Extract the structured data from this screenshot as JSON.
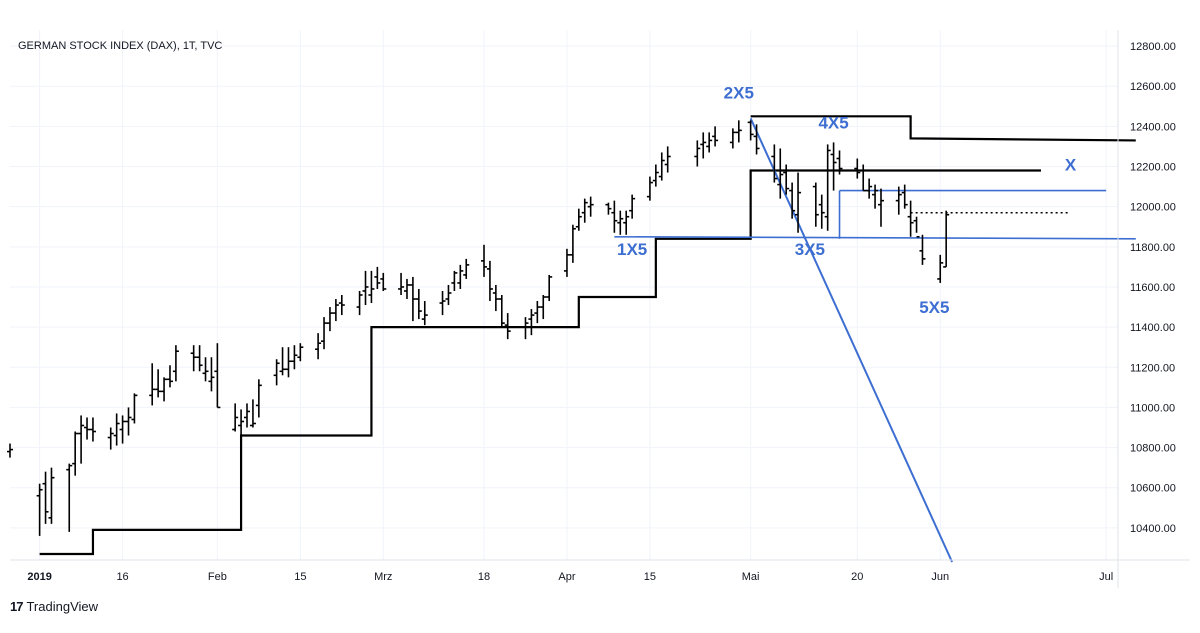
{
  "chart_data": {
    "type": "ohlc",
    "title": "GERMAN STOCK INDEX (DAX), 1T, TVC",
    "ylim": [
      10240,
      12880
    ],
    "y_ticks": [
      "12800.00",
      "12600.00",
      "12400.00",
      "12200.00",
      "12000.00",
      "11800.00",
      "11600.00",
      "11400.00",
      "11200.00",
      "11000.00",
      "10800.00",
      "10600.00",
      "10400.00"
    ],
    "y_tick_values": [
      12800,
      12600,
      12400,
      12200,
      12000,
      11800,
      11600,
      11400,
      11200,
      11000,
      10800,
      10600,
      10400
    ],
    "x_ticks": [
      {
        "label": "2019",
        "date": "2019-01-02",
        "bold": true
      },
      {
        "label": "16",
        "date": "2019-01-16"
      },
      {
        "label": "Feb",
        "date": "2019-02-01"
      },
      {
        "label": "15",
        "date": "2019-02-15"
      },
      {
        "label": "Mrz",
        "date": "2019-03-01"
      },
      {
        "label": "18",
        "date": "2019-03-18"
      },
      {
        "label": "Apr",
        "date": "2019-04-01"
      },
      {
        "label": "15",
        "date": "2019-04-15"
      },
      {
        "label": "Mai",
        "date": "2019-05-02"
      },
      {
        "label": "20",
        "date": "2019-05-20"
      },
      {
        "label": "Jun",
        "date": "2019-06-03"
      },
      {
        "label": "Jul",
        "date": "2019-07-01"
      }
    ],
    "x_range": [
      "2018-12-28",
      "2019-07-03"
    ],
    "grid": true,
    "series": [
      {
        "bar_dates": [
          "2018-12-28",
          "2019-01-02",
          "2019-01-03",
          "2019-01-04",
          "2019-01-07",
          "2019-01-08",
          "2019-01-09",
          "2019-01-10",
          "2019-01-11",
          "2019-01-14",
          "2019-01-15",
          "2019-01-16",
          "2019-01-17",
          "2019-01-18",
          "2019-01-21",
          "2019-01-22",
          "2019-01-23",
          "2019-01-24",
          "2019-01-25",
          "2019-01-28",
          "2019-01-29",
          "2019-01-30",
          "2019-01-31",
          "2019-02-01",
          "2019-02-04",
          "2019-02-05",
          "2019-02-06",
          "2019-02-07",
          "2019-02-08",
          "2019-02-11",
          "2019-02-12",
          "2019-02-13",
          "2019-02-14",
          "2019-02-15",
          "2019-02-18",
          "2019-02-19",
          "2019-02-20",
          "2019-02-21",
          "2019-02-22",
          "2019-02-25",
          "2019-02-26",
          "2019-02-27",
          "2019-02-28",
          "2019-03-01",
          "2019-03-04",
          "2019-03-05",
          "2019-03-06",
          "2019-03-07",
          "2019-03-08",
          "2019-03-11",
          "2019-03-12",
          "2019-03-13",
          "2019-03-14",
          "2019-03-15",
          "2019-03-18",
          "2019-03-19",
          "2019-03-20",
          "2019-03-21",
          "2019-03-22",
          "2019-03-25",
          "2019-03-26",
          "2019-03-27",
          "2019-03-28",
          "2019-03-29",
          "2019-04-01",
          "2019-04-02",
          "2019-04-03",
          "2019-04-04",
          "2019-04-05",
          "2019-04-08",
          "2019-04-09",
          "2019-04-10",
          "2019-04-11",
          "2019-04-12",
          "2019-04-15",
          "2019-04-16",
          "2019-04-17",
          "2019-04-18",
          "2019-04-23",
          "2019-04-24",
          "2019-04-25",
          "2019-04-26",
          "2019-04-29",
          "2019-04-30",
          "2019-05-02",
          "2019-05-03",
          "2019-05-06",
          "2019-05-07",
          "2019-05-08",
          "2019-05-09",
          "2019-05-10",
          "2019-05-13",
          "2019-05-14",
          "2019-05-15",
          "2019-05-16",
          "2019-05-17",
          "2019-05-20",
          "2019-05-21",
          "2019-05-22",
          "2019-05-23",
          "2019-05-24",
          "2019-05-27",
          "2019-05-28",
          "2019-05-29",
          "2019-05-30",
          "2019-05-31",
          "2019-06-03",
          "2019-06-04"
        ],
        "open": [
          10780,
          10560,
          10620,
          10450,
          10690,
          10720,
          10870,
          10900,
          10890,
          10850,
          10860,
          10890,
          10930,
          10940,
          11060,
          11090,
          11080,
          11140,
          11180,
          11270,
          11250,
          11170,
          11130,
          11180,
          10890,
          10910,
          10950,
          10910,
          11010,
          11160,
          11180,
          11190,
          11230,
          11250,
          11290,
          11330,
          11420,
          11470,
          11520,
          11500,
          11580,
          11560,
          11650,
          11640,
          11590,
          11580,
          11610,
          11540,
          11440,
          11520,
          11540,
          11620,
          11620,
          11660,
          11730,
          11690,
          11570,
          11540,
          11410,
          11400,
          11440,
          11470,
          11500,
          11550,
          11680,
          11760,
          11900,
          11970,
          12000,
          12010,
          11970,
          11920,
          11920,
          11980,
          12050,
          12130,
          12150,
          12210,
          12250,
          12310,
          12300,
          12350,
          12320,
          12370,
          12420,
          12350,
          12250,
          12110,
          12170,
          12080,
          11960,
          12100,
          12010,
          11950,
          12260,
          12240,
          12190,
          12180,
          12080,
          12060,
          12010,
          12030,
          12070,
          11950,
          11930,
          11780,
          11640,
          11700
        ],
        "high": [
          10820,
          10620,
          10680,
          10700,
          10720,
          10880,
          10960,
          10950,
          10950,
          10900,
          10970,
          10960,
          11000,
          11070,
          11220,
          11190,
          11150,
          11210,
          11310,
          11310,
          11310,
          11250,
          11250,
          11320,
          11020,
          10990,
          11020,
          11040,
          11140,
          11240,
          11300,
          11300,
          11310,
          11320,
          11370,
          11450,
          11500,
          11540,
          11560,
          11580,
          11680,
          11680,
          11700,
          11670,
          11670,
          11640,
          11650,
          11590,
          11530,
          11580,
          11610,
          11680,
          11710,
          11740,
          11810,
          11730,
          11610,
          11560,
          11470,
          11450,
          11490,
          11530,
          11560,
          11660,
          11790,
          11910,
          11990,
          12040,
          12050,
          12020,
          12030,
          11980,
          11980,
          12060,
          12150,
          12210,
          12270,
          12300,
          12330,
          12370,
          12370,
          12400,
          12390,
          12430,
          12430,
          12410,
          12310,
          12290,
          12210,
          12120,
          12170,
          12120,
          12060,
          12310,
          12320,
          12280,
          12240,
          12210,
          12140,
          12110,
          12090,
          12100,
          12110,
          12030,
          11950,
          11860,
          11760,
          11980
        ],
        "low": [
          10750,
          10360,
          10420,
          10420,
          10380,
          10660,
          10720,
          10840,
          10830,
          10790,
          10810,
          10820,
          10860,
          10920,
          11010,
          11050,
          11030,
          11100,
          11130,
          11180,
          11180,
          11130,
          11080,
          11000,
          10880,
          10860,
          10900,
          10900,
          10950,
          11110,
          11160,
          11150,
          11190,
          11230,
          11240,
          11290,
          11380,
          11430,
          11460,
          11460,
          11510,
          11520,
          11590,
          11580,
          11560,
          11540,
          11430,
          11440,
          11410,
          11460,
          11510,
          11580,
          11590,
          11640,
          11650,
          11530,
          11480,
          11400,
          11340,
          11340,
          11360,
          11420,
          11440,
          11530,
          11650,
          11720,
          11880,
          11920,
          11950,
          11960,
          11870,
          11860,
          11860,
          11940,
          12030,
          12100,
          12130,
          12170,
          12200,
          12240,
          12270,
          12300,
          12290,
          12320,
          12330,
          12260,
          12120,
          12040,
          12060,
          11940,
          11870,
          11900,
          11890,
          11880,
          12080,
          12160,
          12140,
          12080,
          12040,
          11990,
          11900,
          11960,
          11990,
          11850,
          11870,
          11710,
          11620,
          11700
        ],
        "close": [
          10790,
          10590,
          10480,
          10650,
          10710,
          10870,
          10910,
          10890,
          10880,
          10870,
          10920,
          10930,
          10950,
          11060,
          11090,
          11080,
          11140,
          11130,
          11280,
          11250,
          11210,
          11180,
          11150,
          11000,
          10950,
          10930,
          10980,
          10920,
          11110,
          11220,
          11190,
          11230,
          11260,
          11300,
          11320,
          11420,
          11470,
          11510,
          11510,
          11560,
          11600,
          11590,
          11620,
          11590,
          11600,
          11610,
          11540,
          11480,
          11460,
          11530,
          11570,
          11670,
          11680,
          11710,
          11700,
          11590,
          11540,
          11420,
          11380,
          11420,
          11460,
          11500,
          11550,
          11650,
          11760,
          11890,
          11950,
          12020,
          12010,
          11990,
          11930,
          11940,
          11950,
          12040,
          12120,
          12170,
          12230,
          12250,
          12290,
          12320,
          12330,
          12330,
          12370,
          12380,
          12360,
          12290,
          12140,
          12160,
          12090,
          11980,
          12070,
          11960,
          11970,
          12280,
          12220,
          12190,
          12170,
          12080,
          12100,
          12080,
          12030,
          12060,
          12010,
          11920,
          11850,
          11740,
          11720,
          11960
        ]
      }
    ],
    "drawings": {
      "black_steps": [
        [
          [
            "2019-01-02",
            10270
          ],
          [
            "2019-01-11",
            10270
          ],
          [
            "2019-01-11",
            10390
          ],
          [
            "2019-02-05",
            10390
          ],
          [
            "2019-02-05",
            10860
          ],
          [
            "2019-02-27",
            10860
          ],
          [
            "2019-02-27",
            11400
          ],
          [
            "2019-04-03",
            11400
          ],
          [
            "2019-04-03",
            11550
          ],
          [
            "2019-04-16",
            11550
          ],
          [
            "2019-04-16",
            11840
          ],
          [
            "2019-05-02",
            11840
          ],
          [
            "2019-05-02",
            12180
          ],
          [
            "2019-06-20",
            12180
          ]
        ],
        [
          [
            "2019-05-02",
            12450
          ],
          [
            "2019-05-29",
            12450
          ],
          [
            "2019-05-29",
            12340
          ],
          [
            "2019-07-06",
            12330
          ]
        ]
      ],
      "blue_hlines": [
        [
          [
            "2019-04-09",
            11850
          ],
          [
            "2019-07-06",
            11840
          ]
        ],
        [
          [
            "2019-05-17",
            12080
          ],
          [
            "2019-07-01",
            12080
          ]
        ]
      ],
      "blue_vertical": [
        [
          "2019-05-17",
          11840
        ],
        [
          "2019-05-17",
          12080
        ]
      ],
      "blue_trendline": [
        [
          "2019-05-02",
          12440
        ],
        [
          "2019-06-05",
          10230
        ]
      ],
      "dotted_line": [
        [
          "2019-05-29",
          11970
        ],
        [
          "2019-06-25",
          11970
        ]
      ],
      "annotations": [
        {
          "text": "2X5",
          "date": "2019-04-30",
          "price": 12540
        },
        {
          "text": "4X5",
          "date": "2019-05-16",
          "price": 12390
        },
        {
          "text": "X",
          "date": "2019-06-25",
          "price": 12180
        },
        {
          "text": "1X5",
          "date": "2019-04-12",
          "price": 11760
        },
        {
          "text": "3X5",
          "date": "2019-05-12",
          "price": 11760
        },
        {
          "text": "5X5",
          "date": "2019-06-02",
          "price": 11470
        }
      ]
    }
  },
  "footer": {
    "brand": "TradingView",
    "logo_mark": "17"
  },
  "colors": {
    "bars": "#000000",
    "blue": "#3d6ed1",
    "grid": "#f0f3fa",
    "axis_text": "#131722",
    "label_blue": "#3d6ed1"
  }
}
